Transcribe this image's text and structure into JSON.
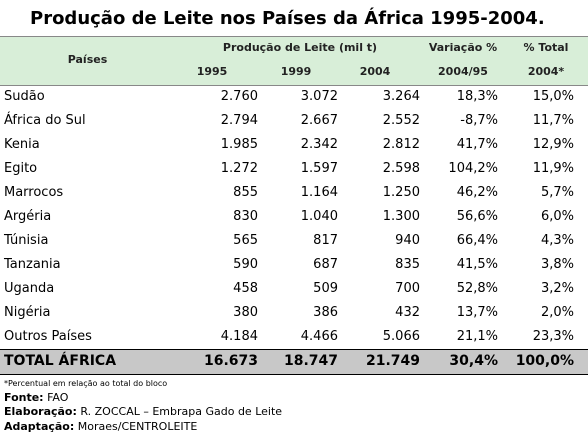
{
  "title": "Produção de Leite nos Países da África 1995-2004.",
  "table": {
    "header": {
      "country": "Países",
      "production": "Produção de Leite (mil t)",
      "years": [
        "1995",
        "1999",
        "2004"
      ],
      "variation": [
        "Variação %",
        "2004/95"
      ],
      "share": [
        "% Total",
        "2004*"
      ]
    },
    "rows": [
      [
        "Sudão",
        "2.760",
        "3.072",
        "3.264",
        "18,3%",
        "15,0%"
      ],
      [
        "África do Sul",
        "2.794",
        "2.667",
        "2.552",
        "-8,7%",
        "11,7%"
      ],
      [
        "Kenia",
        "1.985",
        "2.342",
        "2.812",
        "41,7%",
        "12,9%"
      ],
      [
        "Egito",
        "1.272",
        "1.597",
        "2.598",
        "104,2%",
        "11,9%"
      ],
      [
        "Marrocos",
        "855",
        "1.164",
        "1.250",
        "46,2%",
        "5,7%"
      ],
      [
        "Argéria",
        "830",
        "1.040",
        "1.300",
        "56,6%",
        "6,0%"
      ],
      [
        "Túnisia",
        "565",
        "817",
        "940",
        "66,4%",
        "4,3%"
      ],
      [
        "Tanzania",
        "590",
        "687",
        "835",
        "41,5%",
        "3,8%"
      ],
      [
        "Uganda",
        "458",
        "509",
        "700",
        "52,8%",
        "3,2%"
      ],
      [
        "Nigéria",
        "380",
        "386",
        "432",
        "13,7%",
        "2,0%"
      ],
      [
        "Outros Países",
        "4.184",
        "4.466",
        "5.066",
        "21,1%",
        "23,3%"
      ]
    ],
    "total": [
      "TOTAL ÁFRICA",
      "16.673",
      "18.747",
      "21.749",
      "30,4%",
      "100,0%"
    ]
  },
  "notes": {
    "footnote": "*Percentual em relação ao total do bloco",
    "source": {
      "label": "Fonte:",
      "text": "FAO"
    },
    "elaboration": {
      "label": "Elaboração:",
      "text": "R. ZOCCAL – Embrapa Gado de Leite"
    },
    "adaptation": {
      "label": "Adaptação:",
      "text": "Moraes/CENTROLEITE"
    }
  }
}
